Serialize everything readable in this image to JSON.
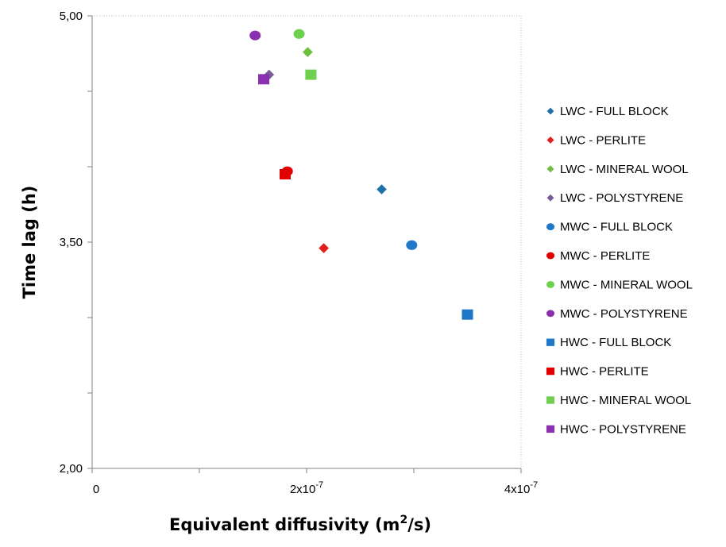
{
  "chart_data": {
    "type": "scatter",
    "title": "",
    "xlabel": "Equivalent diffusivity (m²/s)",
    "ylabel": "Time lag (h)",
    "xlim": [
      0,
      4e-07
    ],
    "ylim": [
      2.0,
      5.0
    ],
    "x_ticks": [
      {
        "value": 0,
        "label": "0"
      },
      {
        "value": 2e-07,
        "label": "2x10",
        "exp": "-7"
      },
      {
        "value": 4e-07,
        "label": "4x10",
        "exp": "-7"
      }
    ],
    "y_ticks": [
      {
        "value": 2.0,
        "label": "2,00"
      },
      {
        "value": 3.5,
        "label": "3,50"
      },
      {
        "value": 5.0,
        "label": "5,00"
      }
    ],
    "y_minor_ticks": [
      2.5,
      3.0,
      4.0,
      4.5
    ],
    "x_minor_ticks": [
      1e-07,
      3e-07
    ],
    "grid": false,
    "legend_position": "right",
    "series": [
      {
        "name": "LWC - FULL BLOCK",
        "marker": "diamond",
        "color": "#1F6FA8",
        "x": [
          2.7e-07
        ],
        "y": [
          3.85
        ]
      },
      {
        "name": "LWC - PERLITE",
        "marker": "diamond",
        "color": "#E21F1F",
        "x": [
          2.16e-07
        ],
        "y": [
          3.46
        ]
      },
      {
        "name": "LWC - MINERAL WOOL",
        "marker": "diamond",
        "color": "#6FBF3F",
        "x": [
          2.01e-07
        ],
        "y": [
          4.76
        ]
      },
      {
        "name": "LWC - POLYSTYRENE",
        "marker": "diamond",
        "color": "#7A5A9A",
        "x": [
          1.65e-07
        ],
        "y": [
          4.61
        ]
      },
      {
        "name": "MWC - FULL BLOCK",
        "marker": "circle",
        "color": "#1F77C8",
        "x": [
          2.98e-07
        ],
        "y": [
          3.48
        ]
      },
      {
        "name": "MWC - PERLITE",
        "marker": "circle",
        "color": "#E00000",
        "x": [
          1.82e-07
        ],
        "y": [
          3.97
        ]
      },
      {
        "name": "MWC - MINERAL WOOL",
        "marker": "circle",
        "color": "#6FD04F",
        "x": [
          1.93e-07
        ],
        "y": [
          4.88
        ]
      },
      {
        "name": "MWC - POLYSTYRENE",
        "marker": "circle",
        "color": "#8A2FB0",
        "x": [
          1.52e-07
        ],
        "y": [
          4.87
        ]
      },
      {
        "name": "HWC - FULL BLOCK",
        "marker": "square",
        "color": "#1F77C8",
        "x": [
          3.5e-07
        ],
        "y": [
          3.02
        ]
      },
      {
        "name": "HWC - PERLITE",
        "marker": "square",
        "color": "#E00000",
        "x": [
          1.8e-07
        ],
        "y": [
          3.95
        ]
      },
      {
        "name": "HWC - MINERAL WOOL",
        "marker": "square",
        "color": "#6FD04F",
        "x": [
          2.04e-07
        ],
        "y": [
          4.61
        ]
      },
      {
        "name": "HWC - POLYSTYRENE",
        "marker": "square",
        "color": "#8A2FB0",
        "x": [
          1.6e-07
        ],
        "y": [
          4.58
        ]
      }
    ]
  }
}
